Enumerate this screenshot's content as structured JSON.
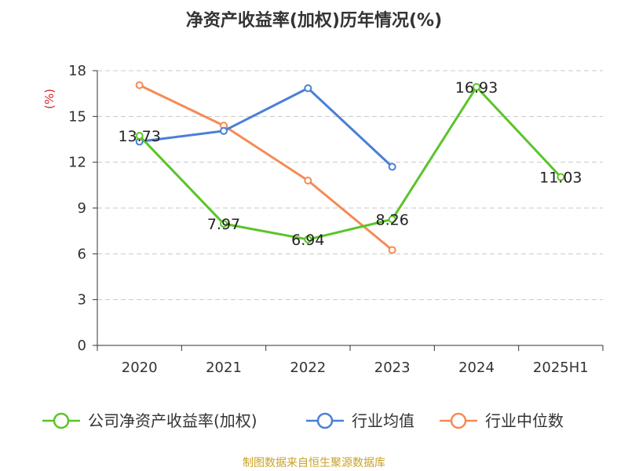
{
  "chart_data": {
    "type": "line",
    "title": "净资产收益率(加权)历年情况(%)",
    "ylabel": "(%)",
    "xlabel": "",
    "categories": [
      "2020",
      "2021",
      "2022",
      "2023",
      "2024",
      "2025H1"
    ],
    "ylim": [
      0,
      18
    ],
    "yticks": [
      0,
      3,
      6,
      9,
      12,
      15,
      18
    ],
    "grid": true,
    "legend_position": "bottom",
    "series": [
      {
        "name": "公司净资产收益率(加权)",
        "color": "#5bc42a",
        "values": [
          13.73,
          7.97,
          6.94,
          8.26,
          16.93,
          11.03
        ],
        "labels": [
          "13.73",
          "7.97",
          "6.94",
          "8.26",
          "16.93",
          "11.03"
        ]
      },
      {
        "name": "行业均值",
        "color": "#4a7fd6",
        "values": [
          13.35,
          14.05,
          16.85,
          11.7,
          null,
          null
        ]
      },
      {
        "name": "行业中位数",
        "color": "#f58b55",
        "values": [
          17.05,
          14.4,
          10.8,
          6.25,
          null,
          null
        ]
      }
    ]
  },
  "source": "制图数据来自恒生聚源数据库"
}
